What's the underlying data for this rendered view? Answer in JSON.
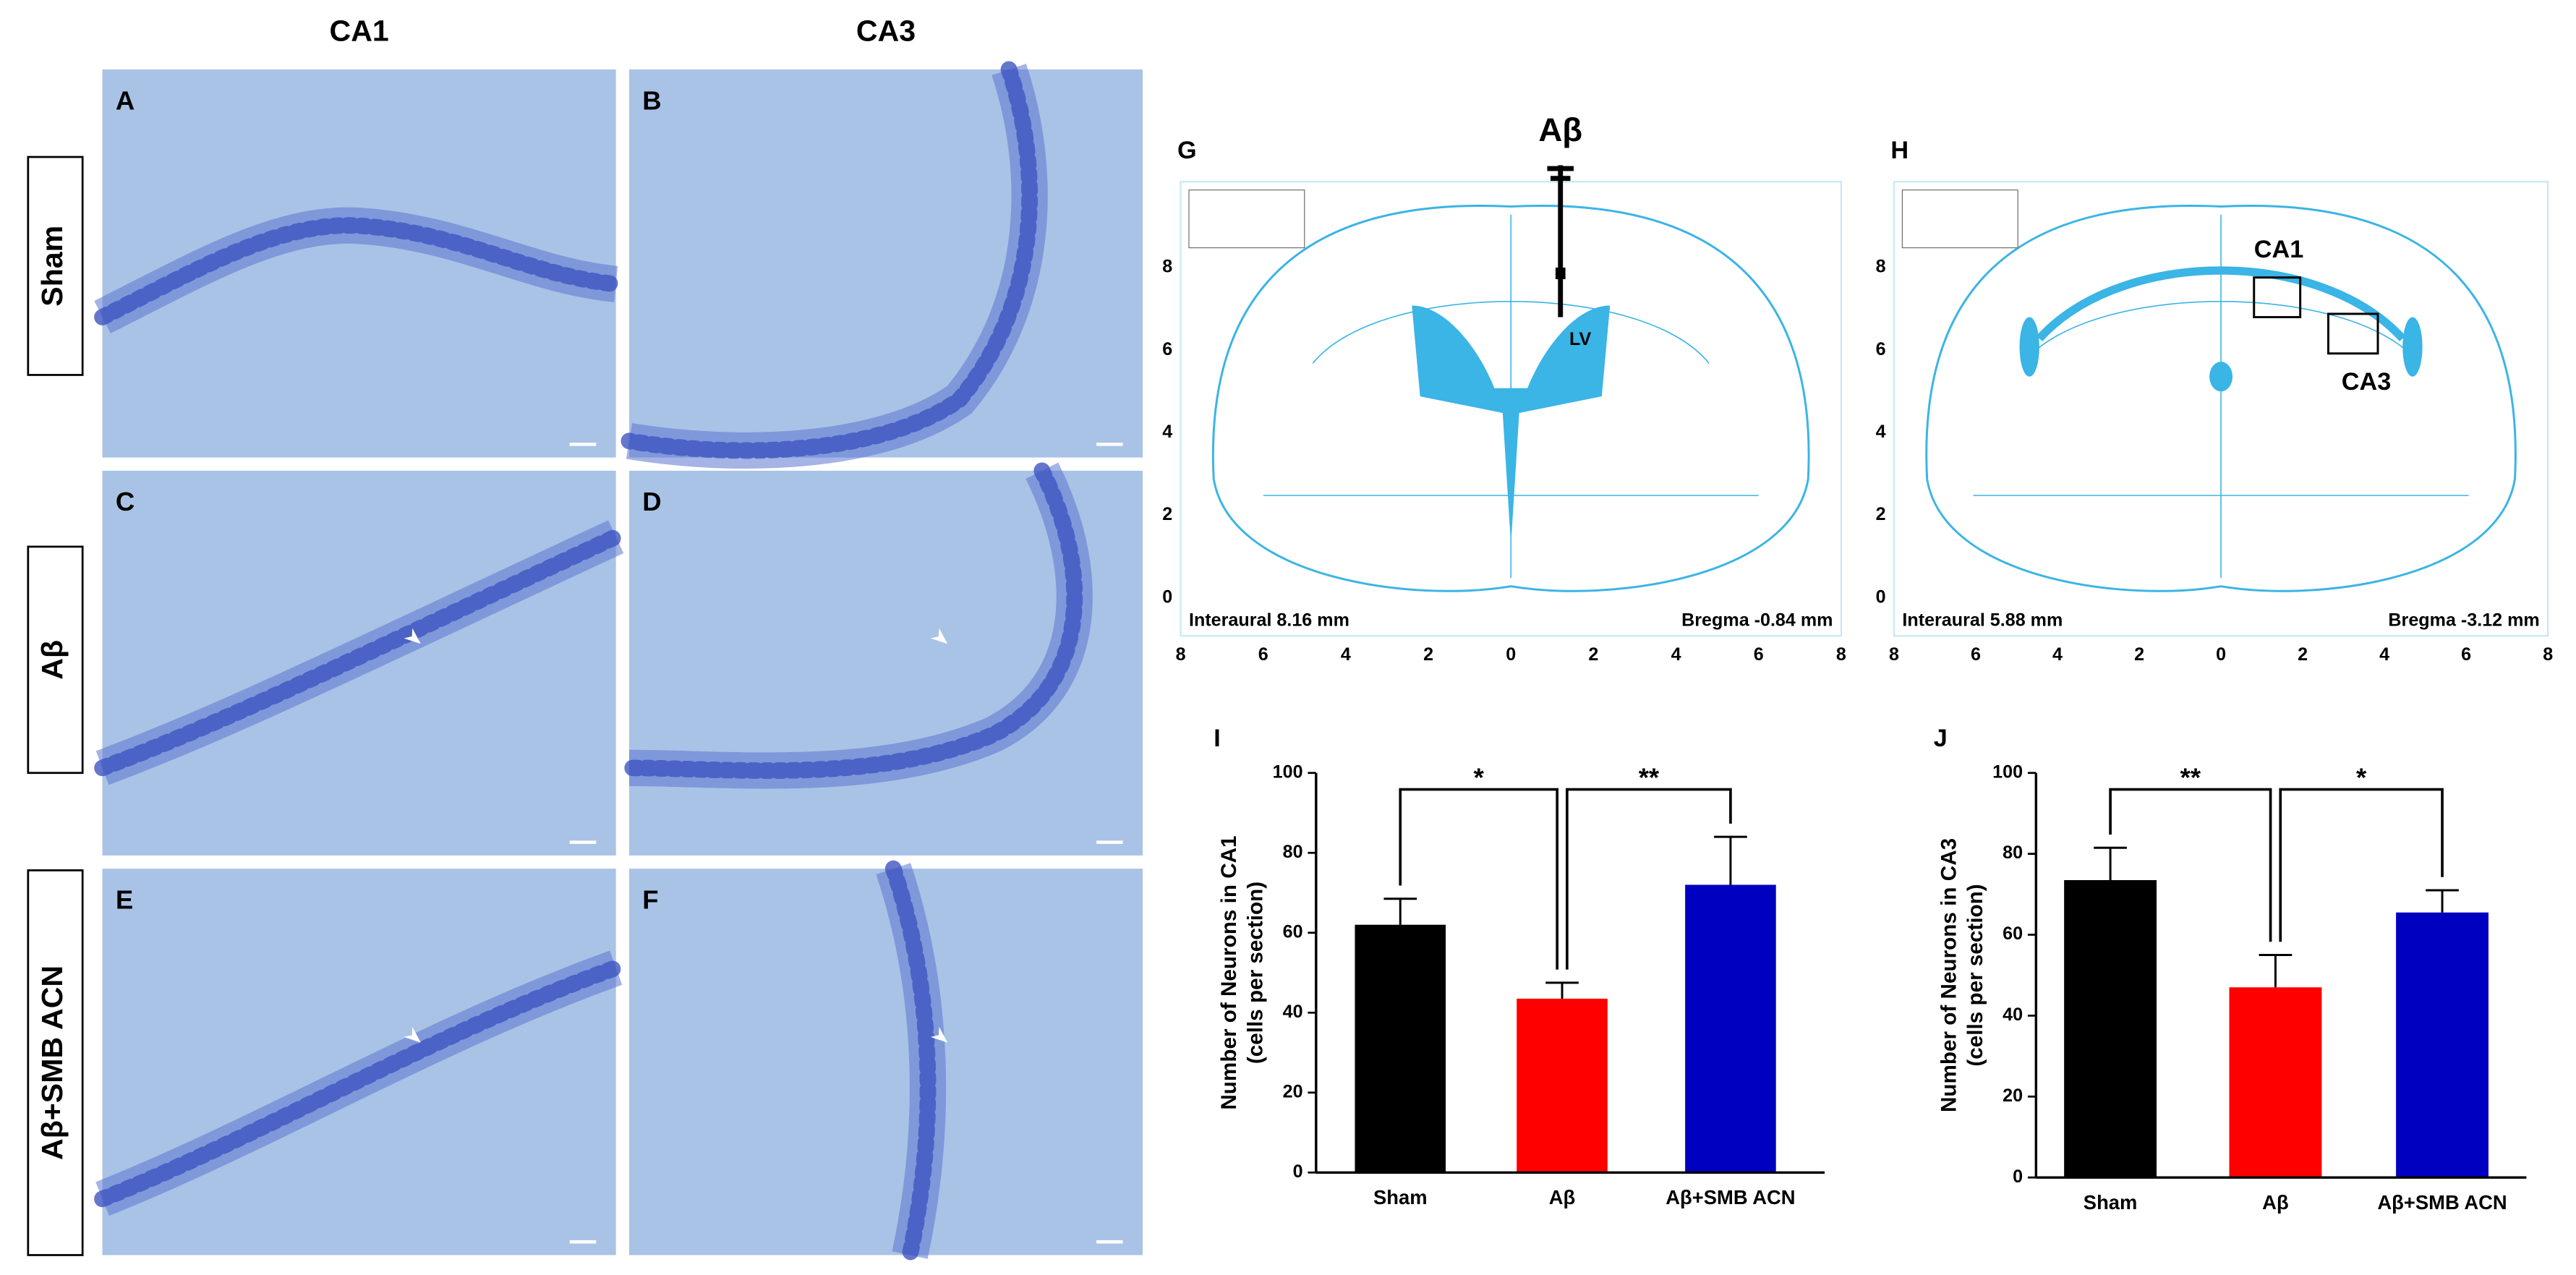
{
  "columns": [
    "CA1",
    "CA3"
  ],
  "rows": [
    "Sham",
    "Aβ",
    "Aβ+SMB ACN"
  ],
  "panels": [
    "A",
    "B",
    "C",
    "D",
    "E",
    "F"
  ],
  "atlas": [
    {
      "label": "G",
      "title": "Aβ",
      "regions": [
        "LV"
      ],
      "interaural": "Interaural 8.16 mm",
      "bregma": "Bregma -0.84 mm",
      "yticks": [
        8,
        6,
        4,
        2,
        0
      ],
      "xticks": [
        8,
        6,
        4,
        2,
        0,
        2,
        4,
        6,
        8
      ]
    },
    {
      "label": "H",
      "regions": [
        "CA1",
        "CA3"
      ],
      "interaural": "Interaural 5.88 mm",
      "bregma": "Bregma -3.12 mm",
      "yticks": [
        8,
        6,
        4,
        2,
        0
      ],
      "xticks": [
        8,
        6,
        4,
        2,
        0,
        2,
        4,
        6,
        8
      ]
    }
  ],
  "chart_data": [
    {
      "type": "bar",
      "label": "I",
      "ylabel": [
        "Number of Neurons in CA1",
        "(cells per section)"
      ],
      "categories": [
        "Sham",
        "Aβ",
        "Aβ+SMB ACN"
      ],
      "values": [
        62,
        43.5,
        72
      ],
      "errors": [
        6.5,
        4,
        12
      ],
      "colors": [
        "#000000",
        "#ff0000",
        "#0000c0"
      ],
      "ylim": [
        0,
        100
      ],
      "yticks": [
        0,
        20,
        40,
        60,
        80,
        100
      ],
      "annotations": [
        "*",
        "**"
      ]
    },
    {
      "type": "bar",
      "label": "J",
      "ylabel": [
        "Number of Neurons in CA3",
        "(cells per section)"
      ],
      "categories": [
        "Sham",
        "Aβ",
        "Aβ+SMB ACN"
      ],
      "values": [
        73.5,
        47,
        65.5
      ],
      "errors": [
        8,
        8,
        5.5
      ],
      "colors": [
        "#000000",
        "#ff0000",
        "#0000c0"
      ],
      "ylim": [
        0,
        100
      ],
      "yticks": [
        0,
        20,
        40,
        60,
        80,
        100
      ],
      "annotations": [
        "**",
        "*"
      ]
    }
  ]
}
